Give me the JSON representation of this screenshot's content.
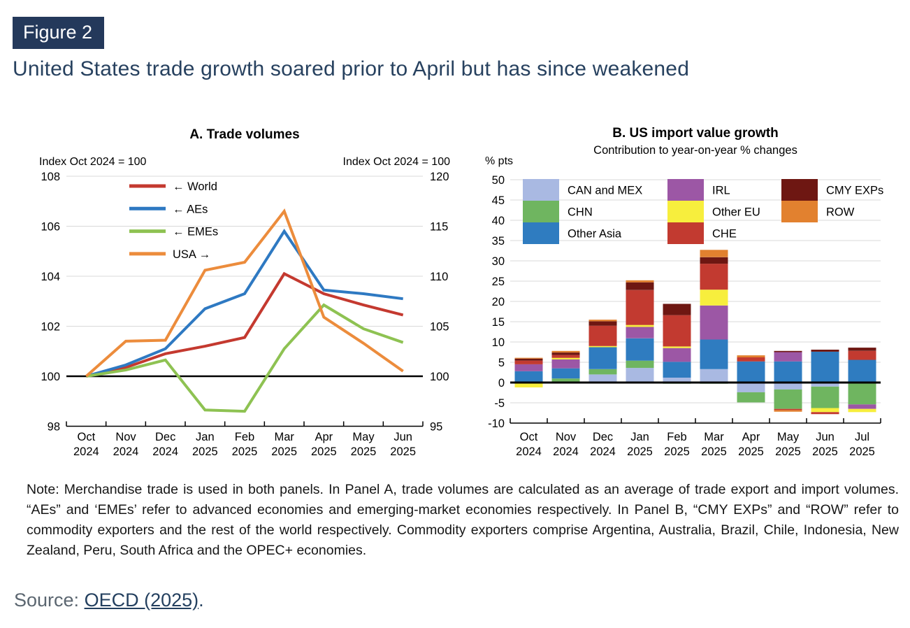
{
  "header": {
    "badge": "Figure 2",
    "title": "United States trade growth soared prior to April but has since weakened"
  },
  "colors": {
    "accent_navy": "#24395b",
    "grid": "#d9d9d9",
    "baseline": "#000000"
  },
  "chart_data": [
    {
      "id": "panel-a",
      "type": "line",
      "title": "A. Trade volumes",
      "left_axis_label": "Index Oct 2024 = 100",
      "right_axis_label": "Index Oct 2024 = 100",
      "left_ylim": [
        98,
        108
      ],
      "left_ticks": [
        98,
        100,
        102,
        104,
        106,
        108
      ],
      "right_ylim": [
        95,
        120
      ],
      "right_ticks": [
        95,
        100,
        105,
        110,
        115,
        120
      ],
      "baseline_value": 100,
      "grid": true,
      "legend_position": "upper-left-inside",
      "categories": [
        "Oct 2024",
        "Nov 2024",
        "Dec 2024",
        "Jan 2025",
        "Feb 2025",
        "Mar 2025",
        "Apr 2025",
        "May 2025",
        "Jun 2025"
      ],
      "series": [
        {
          "name": "← World",
          "axis": "left",
          "color": "#c4392f",
          "values": [
            100,
            100.35,
            100.9,
            101.2,
            101.55,
            104.1,
            103.3,
            102.85,
            102.45
          ]
        },
        {
          "name": "← AEs",
          "axis": "left",
          "color": "#2e79c2",
          "values": [
            100,
            100.45,
            101.1,
            102.7,
            103.3,
            105.8,
            103.45,
            103.3,
            103.1
          ]
        },
        {
          "name": "← EMEs",
          "axis": "left",
          "color": "#8ec252",
          "values": [
            100,
            100.25,
            100.65,
            98.65,
            98.6,
            101.1,
            102.85,
            101.9,
            101.35
          ]
        },
        {
          "name": "USA →",
          "axis": "right",
          "color": "#ec8c3c",
          "values": [
            100,
            103.5,
            103.6,
            110.6,
            111.4,
            116.5,
            105.9,
            103.3,
            100.5
          ]
        }
      ]
    },
    {
      "id": "panel-b",
      "type": "stacked-bar",
      "title": "B. US import value growth",
      "subtitle": "Contribution to year-on-year % changes",
      "ylabel": "% pts",
      "ylim": [
        -10,
        50
      ],
      "tick_step": 5,
      "grid": true,
      "categories": [
        "Oct 2024",
        "Nov 2024",
        "Dec 2024",
        "Jan 2025",
        "Feb 2025",
        "Mar 2025",
        "Apr 2025",
        "May 2025",
        "Jun 2025",
        "Jul 2025"
      ],
      "series": [
        {
          "name": "CAN and MEX",
          "color": "#a9b9e2",
          "values": [
            0,
            0,
            2.0,
            3.6,
            1.2,
            3.3,
            -2.4,
            -1.7,
            -1.0,
            0
          ]
        },
        {
          "name": "CHN",
          "color": "#6fb560",
          "values": [
            0,
            1.0,
            1.3,
            1.8,
            -0.3,
            -0.3,
            -2.5,
            -4.8,
            -5.3,
            -5.4
          ]
        },
        {
          "name": "Other Asia",
          "color": "#2f7cc0",
          "values": [
            2.8,
            2.5,
            5.4,
            5.5,
            3.9,
            7.3,
            5.2,
            5.2,
            7.6,
            5.6
          ]
        },
        {
          "name": "IRL",
          "color": "#9c57a5",
          "values": [
            1.7,
            2.2,
            0,
            2.8,
            3.4,
            8.4,
            0,
            2.3,
            0,
            -1.1
          ]
        },
        {
          "name": "Other EU",
          "color": "#f7ee3d",
          "values": [
            -1.2,
            0.4,
            0.3,
            0.5,
            0.4,
            3.9,
            0,
            0,
            -1.0,
            -0.8
          ]
        },
        {
          "name": "CHE",
          "color": "#c23a30",
          "values": [
            0.9,
            0.7,
            5.0,
            8.6,
            7.7,
            6.4,
            1.0,
            -0.3,
            -0.5,
            2.2
          ]
        },
        {
          "name": "CMY EXPs",
          "color": "#6e1712",
          "values": [
            0.5,
            0.6,
            1.1,
            1.9,
            2.8,
            1.6,
            0,
            0.3,
            0.5,
            0.8
          ]
        },
        {
          "name": "ROW",
          "color": "#e2812f",
          "values": [
            0.2,
            0.4,
            0.4,
            0.5,
            0,
            1.8,
            0.5,
            -0.4,
            0,
            0
          ]
        }
      ],
      "legend_columns": [
        [
          "CAN and MEX",
          "CHN",
          "Other Asia"
        ],
        [
          "IRL",
          "Other EU",
          "CHE"
        ],
        [
          "CMY EXPs",
          "ROW"
        ]
      ]
    }
  ],
  "note": "Note: Merchandise trade is used in both panels. In Panel A, trade volumes are calculated as an average of trade export and import volumes. “AEs” and ‘EMEs’ refer to advanced economies and emerging-market economies respectively. In Panel B, “CMY EXPs” and “ROW” refer to commodity exporters and the rest of the world respectively. Commodity exporters comprise Argentina, Australia, Brazil, Chile, Indonesia, New Zealand, Peru, South Africa and the OPEC+ economies.",
  "source": {
    "prefix": "Source: ",
    "link": "OECD (2025)",
    "suffix": "."
  }
}
